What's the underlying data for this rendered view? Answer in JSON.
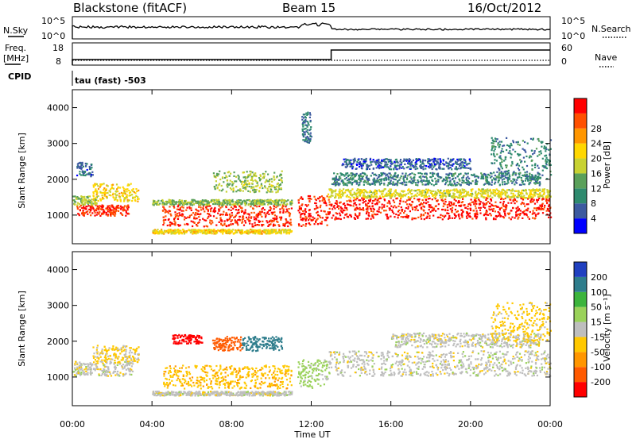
{
  "header": {
    "station": "Blackstone (fitACF)",
    "beam": "Beam 15",
    "date": "16/Oct/2012"
  },
  "top_panels": {
    "nsky_label": "N.Sky",
    "nsky_ticks": [
      "10^5",
      "10^0"
    ],
    "nsearch_label": "N.Search",
    "nsearch_ticks": [
      "10^5",
      "10^0"
    ],
    "freq_label": "Freq.",
    "freq_unit": "[MHz]",
    "freq_ticks": [
      "18",
      "8"
    ],
    "nave_label": "Nave",
    "nave_ticks": [
      "60",
      "0"
    ],
    "cpid_label": "CPID",
    "cpid_text": "tau (fast) -503"
  },
  "colors": {
    "power_scale": [
      "#0000ff",
      "#3c5aa0",
      "#2e8a6e",
      "#5aa05a",
      "#c8d232",
      "#ffd700",
      "#ff9600",
      "#ff5000",
      "#ff0000"
    ],
    "velocity_scale": [
      "#ff0000",
      "#ff5a00",
      "#ff9600",
      "#ffc800",
      "#bebebe",
      "#9ad25a",
      "#3cb43c",
      "#2e7d8c",
      "#2040c0"
    ]
  },
  "chart_data": [
    {
      "type": "heatmap",
      "ylabel": "Slant Range [km]",
      "y_ticks": [
        "1000",
        "2000",
        "3000",
        "4000"
      ],
      "ylim": [
        200,
        4500
      ],
      "x_ticks": [
        "00:00",
        "04:00",
        "08:00",
        "12:00",
        "16:00",
        "20:00",
        "00:00"
      ],
      "colorbar_label": "Power [dB]",
      "colorbar_ticks": [
        "4",
        "8",
        "12",
        "16",
        "20",
        "24",
        "28"
      ],
      "zlim": [
        0,
        30
      ],
      "bands": [
        {
          "t0": 0.2,
          "t1": 2.8,
          "r0": 1000,
          "r1": 1300,
          "z": 27
        },
        {
          "t0": 1.0,
          "t1": 3.3,
          "r0": 1400,
          "r1": 1900,
          "z": 18
        },
        {
          "t0": 0.0,
          "t1": 1.2,
          "r0": 1300,
          "r1": 1550,
          "z": 14
        },
        {
          "t0": 0.2,
          "t1": 1.0,
          "r0": 2100,
          "r1": 2500,
          "z": 6
        },
        {
          "t0": 4.5,
          "t1": 11.0,
          "r0": 700,
          "r1": 1300,
          "z": 27
        },
        {
          "t0": 4.0,
          "t1": 11.0,
          "r0": 1300,
          "r1": 1450,
          "z": 13
        },
        {
          "t0": 7.0,
          "t1": 10.5,
          "r0": 1650,
          "r1": 2250,
          "z": 14
        },
        {
          "t0": 4.0,
          "t1": 11.0,
          "r0": 500,
          "r1": 620,
          "z": 18
        },
        {
          "t0": 11.3,
          "t1": 12.8,
          "r0": 700,
          "r1": 1600,
          "z": 27
        },
        {
          "t0": 12.8,
          "t1": 24.0,
          "r0": 900,
          "r1": 1500,
          "z": 28
        },
        {
          "t0": 12.8,
          "t1": 24.0,
          "r0": 1500,
          "r1": 1750,
          "z": 16
        },
        {
          "t0": 13.0,
          "t1": 23.5,
          "r0": 1850,
          "r1": 2200,
          "z": 8
        },
        {
          "t0": 13.5,
          "t1": 20.0,
          "r0": 2300,
          "r1": 2600,
          "z": 5
        },
        {
          "t0": 21.0,
          "t1": 24.0,
          "r0": 2000,
          "r1": 3200,
          "z": 8
        },
        {
          "t0": 11.5,
          "t1": 12.0,
          "r0": 3000,
          "r1": 3900,
          "z": 7
        }
      ]
    },
    {
      "type": "heatmap",
      "ylabel": "Slant Range [km]",
      "y_ticks": [
        "1000",
        "2000",
        "3000",
        "4000"
      ],
      "ylim": [
        200,
        4500
      ],
      "x_ticks": [
        "00:00",
        "04:00",
        "08:00",
        "12:00",
        "16:00",
        "20:00",
        "00:00"
      ],
      "xlabel": "Time UT",
      "colorbar_label": "Velocity [m s⁻¹]",
      "colorbar_ticks": [
        "-200",
        "-100",
        "-50",
        "-15",
        "15",
        "50",
        "100",
        "200"
      ],
      "bands": [
        {
          "t0": 0.0,
          "t1": 3.0,
          "r0": 1050,
          "r1": 1450,
          "v": 0
        },
        {
          "t0": 1.0,
          "t1": 3.3,
          "r0": 1400,
          "r1": 1900,
          "v": -20
        },
        {
          "t0": 4.5,
          "t1": 11.0,
          "r0": 700,
          "r1": 1350,
          "v": -40
        },
        {
          "t0": 4.0,
          "t1": 11.0,
          "r0": 500,
          "r1": 620,
          "v": 0
        },
        {
          "t0": 5.0,
          "t1": 6.5,
          "r0": 1950,
          "r1": 2200,
          "v": -220
        },
        {
          "t0": 7.0,
          "t1": 8.5,
          "r0": 1750,
          "r1": 2150,
          "v": -180
        },
        {
          "t0": 8.5,
          "t1": 10.5,
          "r0": 1750,
          "r1": 2150,
          "v": 120
        },
        {
          "t0": 11.3,
          "t1": 12.8,
          "r0": 700,
          "r1": 1500,
          "v": 30
        },
        {
          "t0": 12.8,
          "t1": 24.0,
          "r0": 1050,
          "r1": 1750,
          "v": 0
        },
        {
          "t0": 16.0,
          "t1": 23.5,
          "r0": 1850,
          "r1": 2250,
          "v": 0
        },
        {
          "t0": 21.0,
          "t1": 24.0,
          "r0": 2000,
          "r1": 3100,
          "v": -30
        }
      ]
    }
  ]
}
